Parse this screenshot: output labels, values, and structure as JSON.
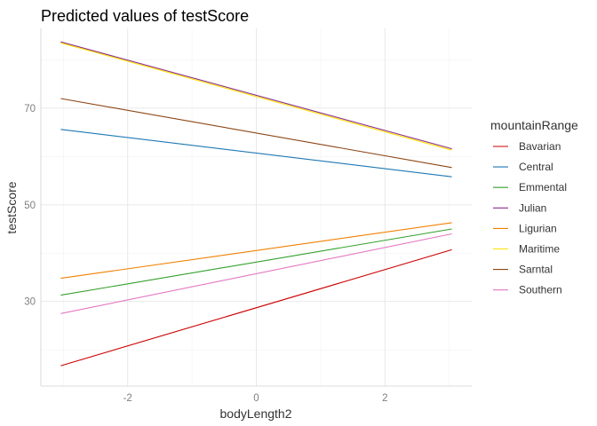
{
  "chart_data": {
    "type": "line",
    "title": "Predicted values of testScore",
    "xlabel": "bodyLength2",
    "ylabel": "testScore",
    "xlim": [
      -3.35,
      3.35
    ],
    "ylim": [
      12.5,
      86.5
    ],
    "x_ticks": [
      -2,
      0,
      2
    ],
    "x_tick_labels": [
      "-2",
      "0",
      "2"
    ],
    "y_ticks": [
      30,
      50,
      70
    ],
    "y_tick_labels": [
      "30",
      "50",
      "70"
    ],
    "x_minor": [
      -3,
      -1,
      1,
      3
    ],
    "y_minor": [
      20,
      40,
      60,
      80
    ],
    "grid": true,
    "legend_title": "mountainRange",
    "legend_position": "right",
    "series": [
      {
        "name": "Bavarian",
        "color": "#CC0000",
        "x": [
          -3.04,
          3.04
        ],
        "y": [
          16.7,
          40.7
        ]
      },
      {
        "name": "Central",
        "color": "#1F78B4",
        "x": [
          -3.04,
          3.04
        ],
        "y": [
          65.6,
          55.8
        ]
      },
      {
        "name": "Emmental",
        "color": "#33A02C",
        "x": [
          -3.04,
          3.04
        ],
        "y": [
          31.3,
          45.0
        ]
      },
      {
        "name": "Julian",
        "color": "#8B2F8B",
        "x": [
          -3.04,
          3.04
        ],
        "y": [
          83.7,
          61.6
        ]
      },
      {
        "name": "Ligurian",
        "color": "#F08000",
        "x": [
          -3.04,
          3.04
        ],
        "y": [
          34.8,
          46.3
        ]
      },
      {
        "name": "Maritime",
        "color": "#FFE000",
        "x": [
          -3.04,
          3.04
        ],
        "y": [
          83.5,
          61.3
        ]
      },
      {
        "name": "Sarntal",
        "color": "#8B4513",
        "x": [
          -3.04,
          3.04
        ],
        "y": [
          72.0,
          57.7
        ]
      },
      {
        "name": "Southern",
        "color": "#E377C2",
        "x": [
          -3.04,
          3.04
        ],
        "y": [
          27.5,
          44.0
        ]
      }
    ]
  }
}
